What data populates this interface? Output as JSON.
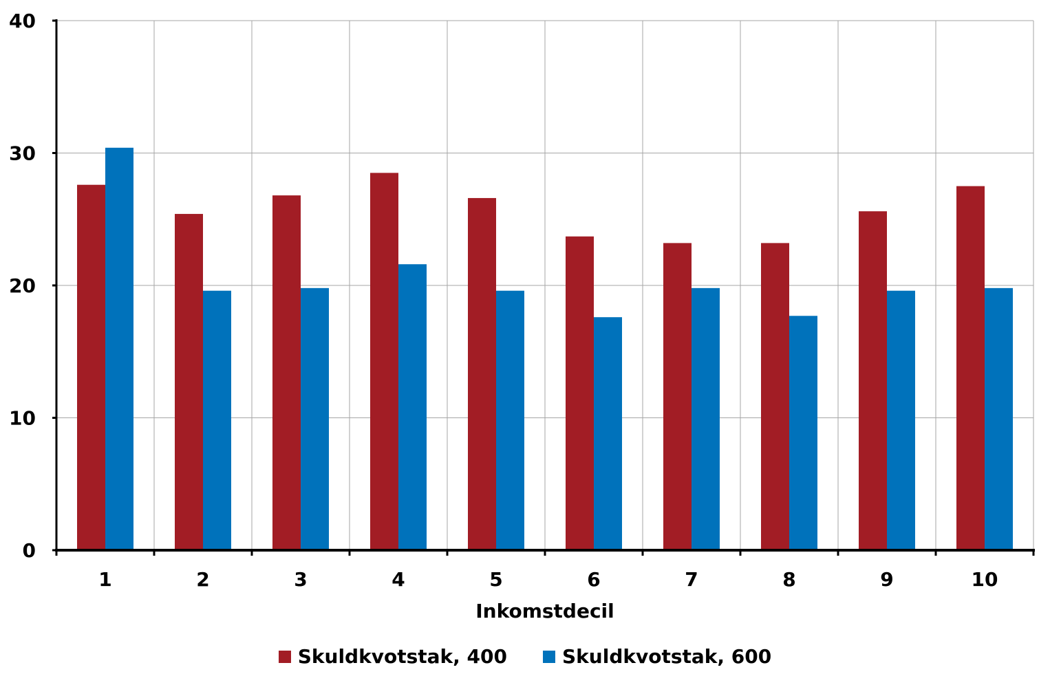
{
  "chart_data": {
    "type": "bar",
    "xlabel": "Inkomstdecil",
    "ylabel": "",
    "ylim": [
      0,
      40
    ],
    "yticks": [
      0,
      10,
      20,
      30,
      40
    ],
    "grid": true,
    "legend_position": "bottom",
    "categories": [
      "1",
      "2",
      "3",
      "4",
      "5",
      "6",
      "7",
      "8",
      "9",
      "10"
    ],
    "series": [
      {
        "name": "Skuldkvotstak, 400",
        "color": "#a21d25",
        "values": [
          27.6,
          25.4,
          26.8,
          28.5,
          26.6,
          23.7,
          23.2,
          23.2,
          25.6,
          27.5
        ]
      },
      {
        "name": "Skuldkvotstak, 600",
        "color": "#0072bb",
        "values": [
          30.4,
          19.6,
          19.8,
          21.6,
          19.6,
          17.6,
          19.8,
          17.7,
          19.6,
          19.8
        ]
      }
    ]
  }
}
